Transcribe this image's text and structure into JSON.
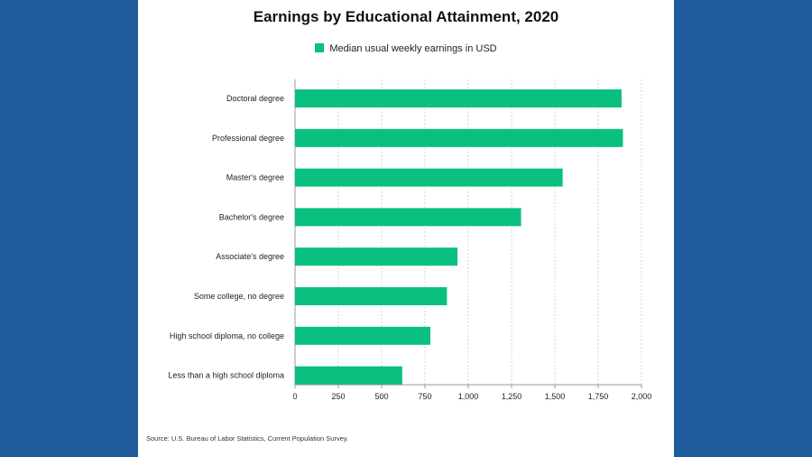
{
  "chart_data": {
    "type": "bar",
    "orientation": "horizontal",
    "title": "Earnings by Educational Attainment, 2020",
    "categories": [
      "Doctoral degree",
      "Professional degree",
      "Master's degree",
      "Bachelor's degree",
      "Associate's degree",
      "Some college, no degree",
      "High school diploma, no college",
      "Less than a high school diploma"
    ],
    "series": [
      {
        "name": "Median usual weekly earnings in USD",
        "values": [
          1885,
          1893,
          1545,
          1305,
          938,
          877,
          781,
          619
        ]
      }
    ],
    "xlim": [
      0,
      2000
    ],
    "xticks": [
      0,
      250,
      500,
      750,
      1000,
      1250,
      1500,
      1750,
      2000
    ],
    "xtick_labels": [
      "0",
      "250",
      "500",
      "750",
      "1,000",
      "1,250",
      "1,500",
      "1,750",
      "2,000"
    ],
    "xlabel": "",
    "ylabel": "",
    "grid": "vertical dotted",
    "legend": "top-center",
    "bar_color": "#09c07f"
  },
  "source": "Source: U.S. Bureau of Labor Statistics, Current Population Survey.",
  "colors": {
    "background": "#1f5c9c",
    "slide": "#ffffff",
    "bar": "#09c07f"
  }
}
